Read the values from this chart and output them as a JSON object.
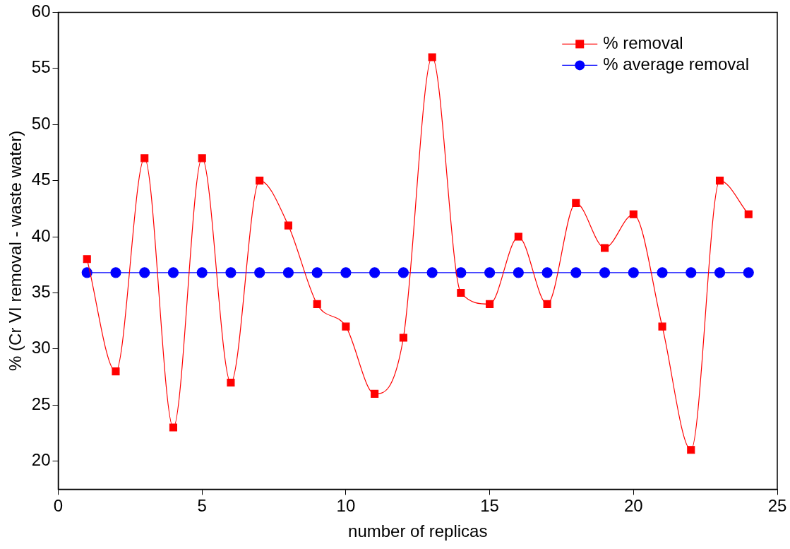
{
  "chart_data": {
    "type": "line",
    "xlabel": "number of replicas",
    "ylabel": "% (Cr VI removal - waste water)",
    "x": [
      1,
      2,
      3,
      4,
      5,
      6,
      7,
      8,
      9,
      10,
      11,
      12,
      13,
      14,
      15,
      16,
      17,
      18,
      19,
      20,
      21,
      22,
      23,
      24
    ],
    "series": [
      {
        "name": "% removal",
        "color": "#ff0000",
        "marker": "square",
        "values": [
          38,
          28,
          47,
          23,
          47,
          27,
          45,
          41,
          34,
          32,
          26,
          31,
          56,
          35,
          34,
          40,
          34,
          43,
          39,
          42,
          32,
          21,
          45,
          42
        ]
      },
      {
        "name": "% average removal",
        "color": "#0000ff",
        "marker": "circle",
        "values": [
          36.8,
          36.8,
          36.8,
          36.8,
          36.8,
          36.8,
          36.8,
          36.8,
          36.8,
          36.8,
          36.8,
          36.8,
          36.8,
          36.8,
          36.8,
          36.8,
          36.8,
          36.8,
          36.8,
          36.8,
          36.8,
          36.8,
          36.8,
          36.8
        ]
      }
    ],
    "xlim": [
      0,
      25
    ],
    "xticks": [
      0,
      5,
      10,
      15,
      20,
      25
    ],
    "ylim": [
      17.5,
      60
    ],
    "yticks": [
      20,
      25,
      30,
      35,
      40,
      45,
      50,
      55,
      60
    ],
    "grid": false,
    "legend": "top right"
  }
}
